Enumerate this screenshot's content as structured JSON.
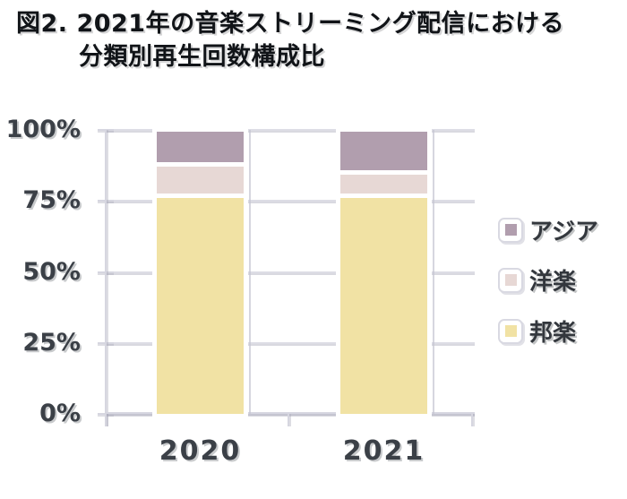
{
  "figure_title": {
    "line1": "図2. 2021年の音楽ストリーミング配信における",
    "line2": "分類別再生回数構成比"
  },
  "chart_data": {
    "type": "bar",
    "variant": "stacked-100-percent",
    "title": "図2. 2021年の音楽ストリーミング配信における分類別再生回数構成比",
    "categories": [
      "2020",
      "2021"
    ],
    "series": [
      {
        "id": "asia",
        "name": "アジア",
        "color": "#b19eae",
        "values": [
          11,
          14
        ]
      },
      {
        "id": "western",
        "name": "洋楽",
        "color": "#e7d8d5",
        "values": [
          10,
          7
        ]
      },
      {
        "id": "japanese",
        "name": "邦楽",
        "color": "#f1e2a4",
        "values": [
          79,
          79
        ]
      }
    ],
    "y_axis": {
      "ticks": [
        "100%",
        "75%",
        "50%",
        "25%",
        "0%"
      ],
      "tick_values": [
        100,
        75,
        50,
        25,
        0
      ],
      "ylim": [
        0,
        100
      ],
      "unit": "%"
    },
    "x_axis": {
      "labels": [
        "2020",
        "2021"
      ]
    },
    "legend": {
      "position": "right",
      "entries": [
        "アジア",
        "洋楽",
        "邦楽"
      ]
    },
    "grid": true
  },
  "style": {
    "background": "#ffffff",
    "grid_color": "#d9d9e2",
    "label_color": "#3b4047",
    "title_color": "#111418"
  }
}
